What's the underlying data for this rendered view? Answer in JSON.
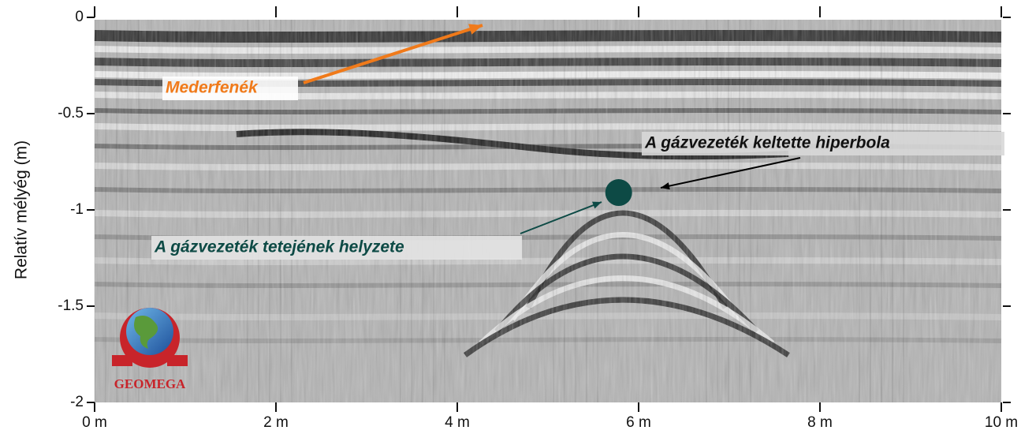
{
  "chart_data": {
    "type": "scatter",
    "ylabel": "Relatív mélyég (m)",
    "x": [
      5.78
    ],
    "values": [
      -0.91
    ],
    "color": "#0d4a45",
    "xlim": [
      0,
      10
    ],
    "xticks": [
      {
        "value": 0,
        "label": "0 m"
      },
      {
        "value": 2,
        "label": "2 m"
      },
      {
        "value": 4,
        "label": "4 m"
      },
      {
        "value": 6,
        "label": "6 m"
      },
      {
        "value": 8,
        "label": "8 m"
      },
      {
        "value": 10,
        "label": "10 m"
      }
    ],
    "ylim": [
      -2,
      0
    ],
    "yticks": [
      0,
      -0.5,
      -1,
      -1.5,
      -2
    ],
    "annotations": [
      "Mederfenék",
      "A gázvezeték keltette hiperbola",
      "A gázvezeték tetejének helyzete"
    ],
    "logo": "GEOMEGA"
  }
}
